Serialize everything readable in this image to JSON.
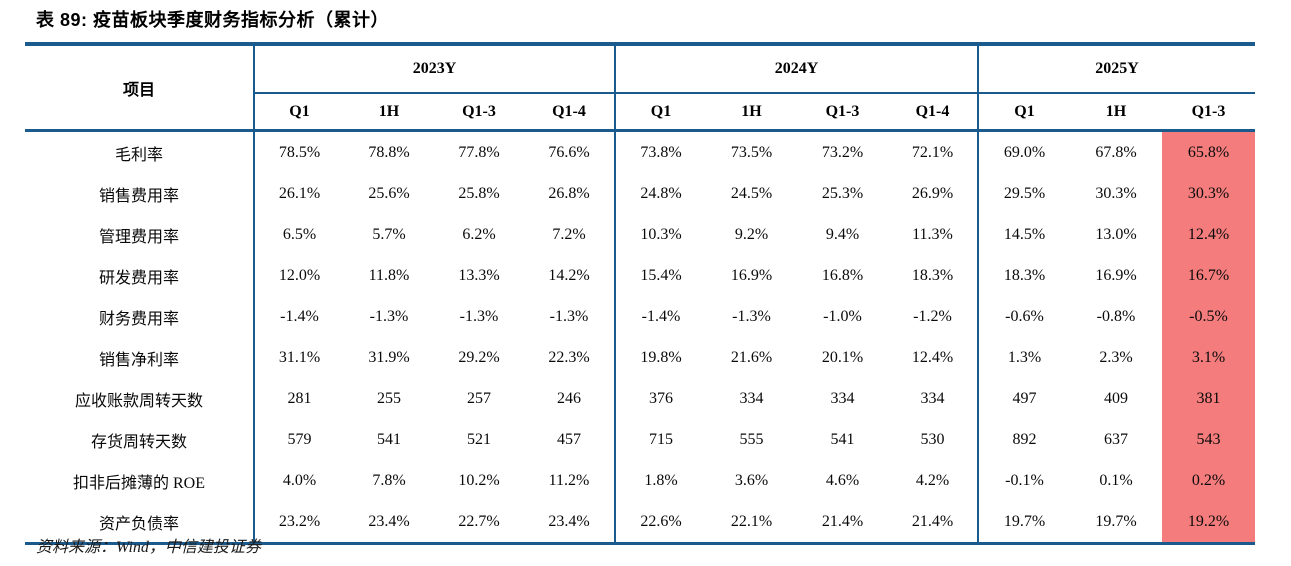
{
  "title": "表 89: 疫苗板块季度财务指标分析（累计）",
  "source": "资料来源：Wind，中信建投证券",
  "colors": {
    "border_blue": "#1B5A8C",
    "highlight_red": "#F47C7C"
  },
  "table": {
    "item_header": "项目",
    "groups": [
      {
        "label": "2023Y",
        "cols": [
          "Q1",
          "1H",
          "Q1-3",
          "Q1-4"
        ]
      },
      {
        "label": "2024Y",
        "cols": [
          "Q1",
          "1H",
          "Q1-3",
          "Q1-4"
        ]
      },
      {
        "label": "2025Y",
        "cols": [
          "Q1",
          "1H",
          "Q1-3"
        ]
      }
    ],
    "highlight_column": "2025Y Q1-3",
    "rows": [
      {
        "label": "毛利率",
        "values": [
          "78.5%",
          "78.8%",
          "77.8%",
          "76.6%",
          "73.8%",
          "73.5%",
          "73.2%",
          "72.1%",
          "69.0%",
          "67.8%",
          "65.8%"
        ]
      },
      {
        "label": "销售费用率",
        "values": [
          "26.1%",
          "25.6%",
          "25.8%",
          "26.8%",
          "24.8%",
          "24.5%",
          "25.3%",
          "26.9%",
          "29.5%",
          "30.3%",
          "30.3%"
        ]
      },
      {
        "label": "管理费用率",
        "values": [
          "6.5%",
          "5.7%",
          "6.2%",
          "7.2%",
          "10.3%",
          "9.2%",
          "9.4%",
          "11.3%",
          "14.5%",
          "13.0%",
          "12.4%"
        ]
      },
      {
        "label": "研发费用率",
        "values": [
          "12.0%",
          "11.8%",
          "13.3%",
          "14.2%",
          "15.4%",
          "16.9%",
          "16.8%",
          "18.3%",
          "18.3%",
          "16.9%",
          "16.7%"
        ]
      },
      {
        "label": "财务费用率",
        "values": [
          "-1.4%",
          "-1.3%",
          "-1.3%",
          "-1.3%",
          "-1.4%",
          "-1.3%",
          "-1.0%",
          "-1.2%",
          "-0.6%",
          "-0.8%",
          "-0.5%"
        ]
      },
      {
        "label": "销售净利率",
        "values": [
          "31.1%",
          "31.9%",
          "29.2%",
          "22.3%",
          "19.8%",
          "21.6%",
          "20.1%",
          "12.4%",
          "1.3%",
          "2.3%",
          "3.1%"
        ]
      },
      {
        "label": "应收账款周转天数",
        "values": [
          "281",
          "255",
          "257",
          "246",
          "376",
          "334",
          "334",
          "334",
          "497",
          "409",
          "381"
        ]
      },
      {
        "label": "存货周转天数",
        "values": [
          "579",
          "541",
          "521",
          "457",
          "715",
          "555",
          "541",
          "530",
          "892",
          "637",
          "543"
        ]
      },
      {
        "label": "扣非后摊薄的 ROE",
        "values": [
          "4.0%",
          "7.8%",
          "10.2%",
          "11.2%",
          "1.8%",
          "3.6%",
          "4.6%",
          "4.2%",
          "-0.1%",
          "0.1%",
          "0.2%"
        ]
      },
      {
        "label": "资产负债率",
        "values": [
          "23.2%",
          "23.4%",
          "22.7%",
          "23.4%",
          "22.6%",
          "22.1%",
          "21.4%",
          "21.4%",
          "19.7%",
          "19.7%",
          "19.2%"
        ]
      }
    ]
  }
}
